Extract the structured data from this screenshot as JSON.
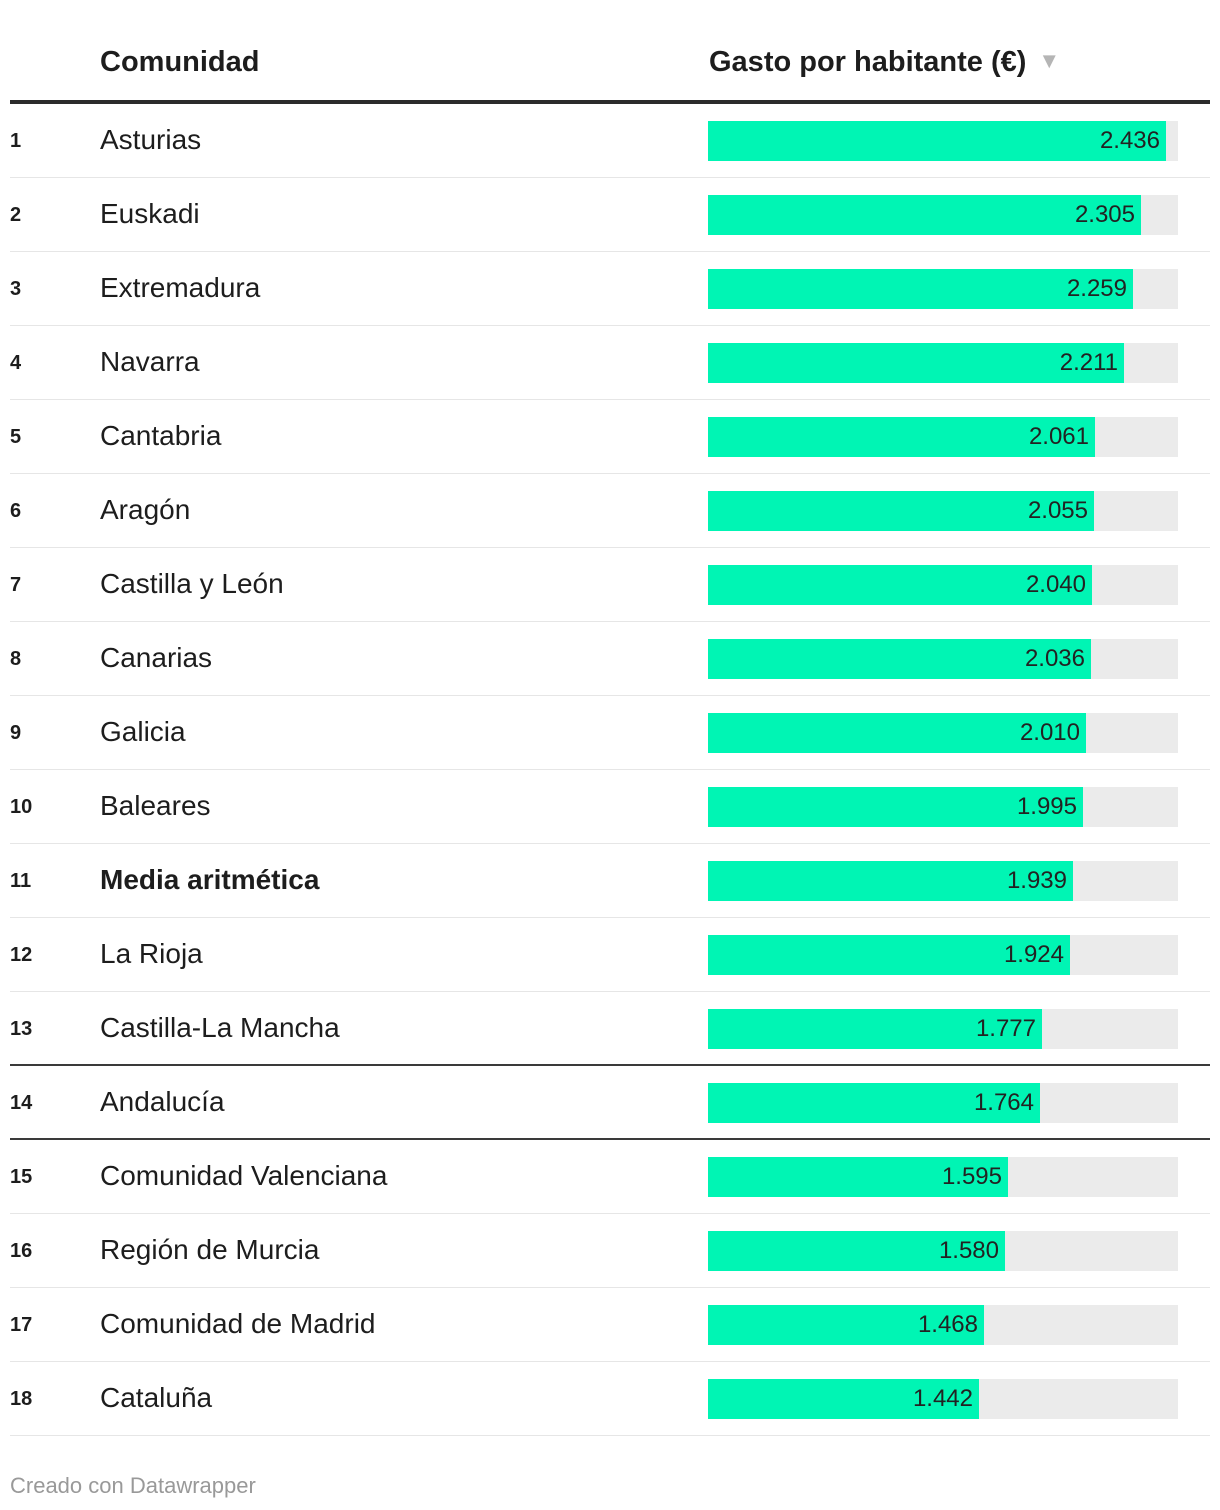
{
  "table": {
    "header": {
      "name_label": "Comunidad",
      "value_label": "Gasto por habitante (€)",
      "sort_icon": "sort-descending-icon"
    }
  },
  "chart_data": {
    "type": "bar",
    "orientation": "horizontal",
    "title": "",
    "xlabel": "Gasto por habitante (€)",
    "ylabel": "Comunidad",
    "xlim": [
      0,
      2500
    ],
    "bar_color": "#00f5b4",
    "track_color": "#ebebeb",
    "rows": [
      {
        "rank": "1",
        "name": "Asturias",
        "value": 2436,
        "label": "2.436"
      },
      {
        "rank": "2",
        "name": "Euskadi",
        "value": 2305,
        "label": "2.305"
      },
      {
        "rank": "3",
        "name": "Extremadura",
        "value": 2259,
        "label": "2.259"
      },
      {
        "rank": "4",
        "name": "Navarra",
        "value": 2211,
        "label": "2.211"
      },
      {
        "rank": "5",
        "name": "Cantabria",
        "value": 2061,
        "label": "2.061"
      },
      {
        "rank": "6",
        "name": "Aragón",
        "value": 2055,
        "label": "2.055"
      },
      {
        "rank": "7",
        "name": "Castilla y León",
        "value": 2040,
        "label": "2.040"
      },
      {
        "rank": "8",
        "name": "Canarias",
        "value": 2036,
        "label": "2.036"
      },
      {
        "rank": "9",
        "name": "Galicia",
        "value": 2010,
        "label": "2.010"
      },
      {
        "rank": "10",
        "name": "Baleares",
        "value": 1995,
        "label": "1.995"
      },
      {
        "rank": "11",
        "name": "Media aritmética",
        "value": 1939,
        "label": "1.939",
        "bold": true
      },
      {
        "rank": "12",
        "name": "La Rioja",
        "value": 1924,
        "label": "1.924"
      },
      {
        "rank": "13",
        "name": "Castilla-La Mancha",
        "value": 1777,
        "label": "1.777",
        "divider_below": true
      },
      {
        "rank": "14",
        "name": "Andalucía",
        "value": 1764,
        "label": "1.764",
        "divider_below": true
      },
      {
        "rank": "15",
        "name": "Comunidad Valenciana",
        "value": 1595,
        "label": "1.595"
      },
      {
        "rank": "16",
        "name": "Región de Murcia",
        "value": 1580,
        "label": "1.580"
      },
      {
        "rank": "17",
        "name": "Comunidad de Madrid",
        "value": 1468,
        "label": "1.468"
      },
      {
        "rank": "18",
        "name": "Cataluña",
        "value": 1442,
        "label": "1.442"
      }
    ]
  },
  "footer": {
    "credit": "Creado con Datawrapper"
  }
}
